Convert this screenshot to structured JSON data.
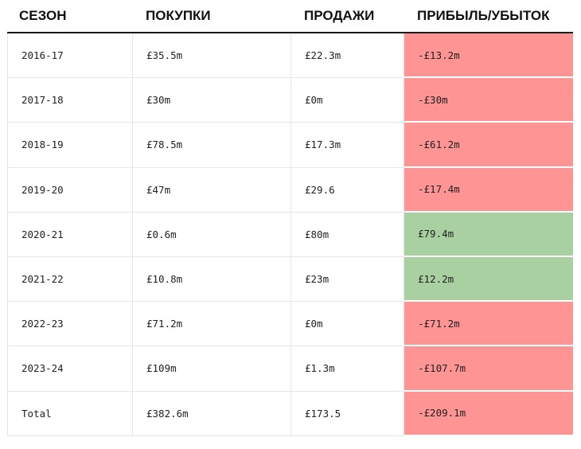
{
  "headers": {
    "season": "СЕЗОН",
    "purchases": "ПОКУПКИ",
    "sales": "ПРОДАЖИ",
    "profit_loss": "ПРИБЫЛЬ/УБЫТОК"
  },
  "rows": [
    {
      "season": "2016-17",
      "purchases": "£35.5m",
      "sales": "£22.3m",
      "profit_loss": "-£13.2m",
      "status": "loss"
    },
    {
      "season": "2017-18",
      "purchases": "£30m",
      "sales": "£0m",
      "profit_loss": "-£30m",
      "status": "loss"
    },
    {
      "season": "2018-19",
      "purchases": "£78.5m",
      "sales": "£17.3m",
      "profit_loss": "-£61.2m",
      "status": "loss"
    },
    {
      "season": "2019-20",
      "purchases": "£47m",
      "sales": "£29.6",
      "profit_loss": "-£17.4m",
      "status": "loss"
    },
    {
      "season": "2020-21",
      "purchases": "£0.6m",
      "sales": "£80m",
      "profit_loss": "£79.4m",
      "status": "profit"
    },
    {
      "season": "2021-22",
      "purchases": "£10.8m",
      "sales": "£23m",
      "profit_loss": "£12.2m",
      "status": "profit"
    },
    {
      "season": "2022-23",
      "purchases": "£71.2m",
      "sales": "£0m",
      "profit_loss": "-£71.2m",
      "status": "loss"
    },
    {
      "season": "2023-24",
      "purchases": "£109m",
      "sales": "£1.3m",
      "profit_loss": "-£107.7m",
      "status": "loss"
    },
    {
      "season": "Total",
      "purchases": "£382.6m",
      "sales": "£173.5",
      "profit_loss": "-£209.1m",
      "status": "loss"
    }
  ],
  "colors": {
    "loss": "#ff9494",
    "profit": "#a9d0a0"
  }
}
